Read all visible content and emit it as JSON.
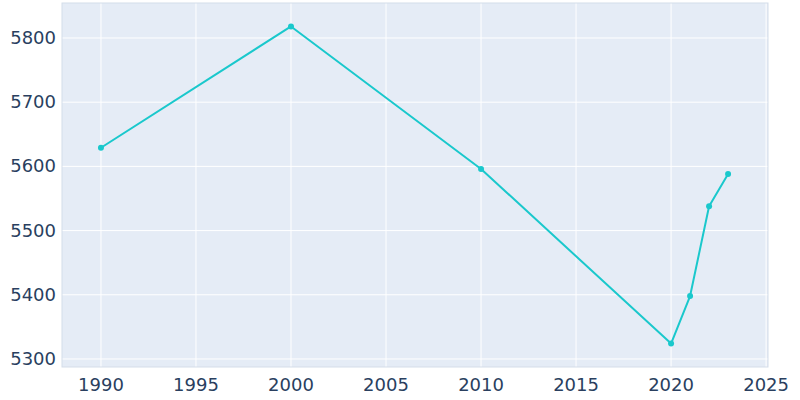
{
  "chart_data": {
    "type": "line",
    "x": [
      1990,
      2000,
      2010,
      2020,
      2021,
      2022,
      2023
    ],
    "values": [
      5629,
      5818,
      5596,
      5324,
      5398,
      5538,
      5588
    ],
    "color": "#1ac8cc",
    "marker": "circle",
    "xlim": [
      1987.95,
      2025.1
    ],
    "xticks": [
      1990,
      1995,
      2000,
      2005,
      2010,
      2015,
      2020,
      2025
    ],
    "ylim": [
      5287.5,
      5854.5
    ],
    "yticks": [
      5300,
      5400,
      5500,
      5600,
      5700,
      5800
    ],
    "grid": true
  }
}
